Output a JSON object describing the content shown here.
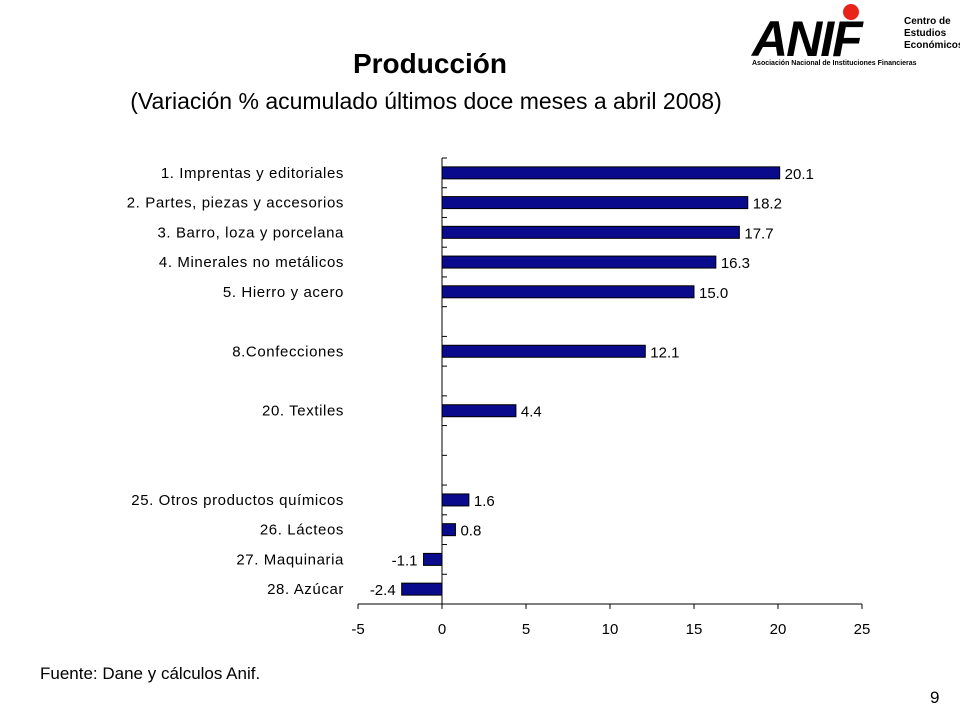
{
  "header": {
    "title": "Producción",
    "subtitle": "(Variación % acumulado últimos doce meses a abril 2008)"
  },
  "logo": {
    "wordmark": "ANIF",
    "tagline": "Asociación Nacional de Instituciones Financieras",
    "side_lines": [
      "Centro de",
      "Estudios",
      "Económicos"
    ],
    "dot_color": "#e8231a"
  },
  "chart_data": {
    "type": "bar",
    "orientation": "horizontal",
    "categories": [
      "1. Imprentas y editoriales",
      "2. Partes, piezas y accesorios",
      "3. Barro, loza y porcelana",
      "4. Minerales no metálicos",
      "5. Hierro y acero",
      "8.Confecciones",
      "20. Textiles",
      "25. Otros productos químicos",
      "26. Lácteos",
      "27. Maquinaria",
      "28. Azúcar"
    ],
    "rank": [
      1,
      2,
      3,
      4,
      5,
      8,
      20,
      25,
      26,
      27,
      28
    ],
    "total_slots": 15,
    "values": [
      20.1,
      18.2,
      17.7,
      16.3,
      15.0,
      12.1,
      4.4,
      1.6,
      0.8,
      -1.1,
      -2.4
    ],
    "value_labels": [
      "20.1",
      "18.2",
      "17.7",
      "16.3",
      "15.0",
      "12.1",
      "4.4",
      "1.6",
      "0.8",
      "-1.1",
      "-2.4"
    ],
    "xlim": [
      -5,
      25
    ],
    "xticks": [
      "-5",
      "0",
      "5",
      "10",
      "15",
      "20",
      "25"
    ],
    "bar_color": "#0a0a8c",
    "grid": false,
    "legend": "none"
  },
  "footer": {
    "source": "Fuente: Dane y cálculos Anif.",
    "page_number": "9"
  }
}
